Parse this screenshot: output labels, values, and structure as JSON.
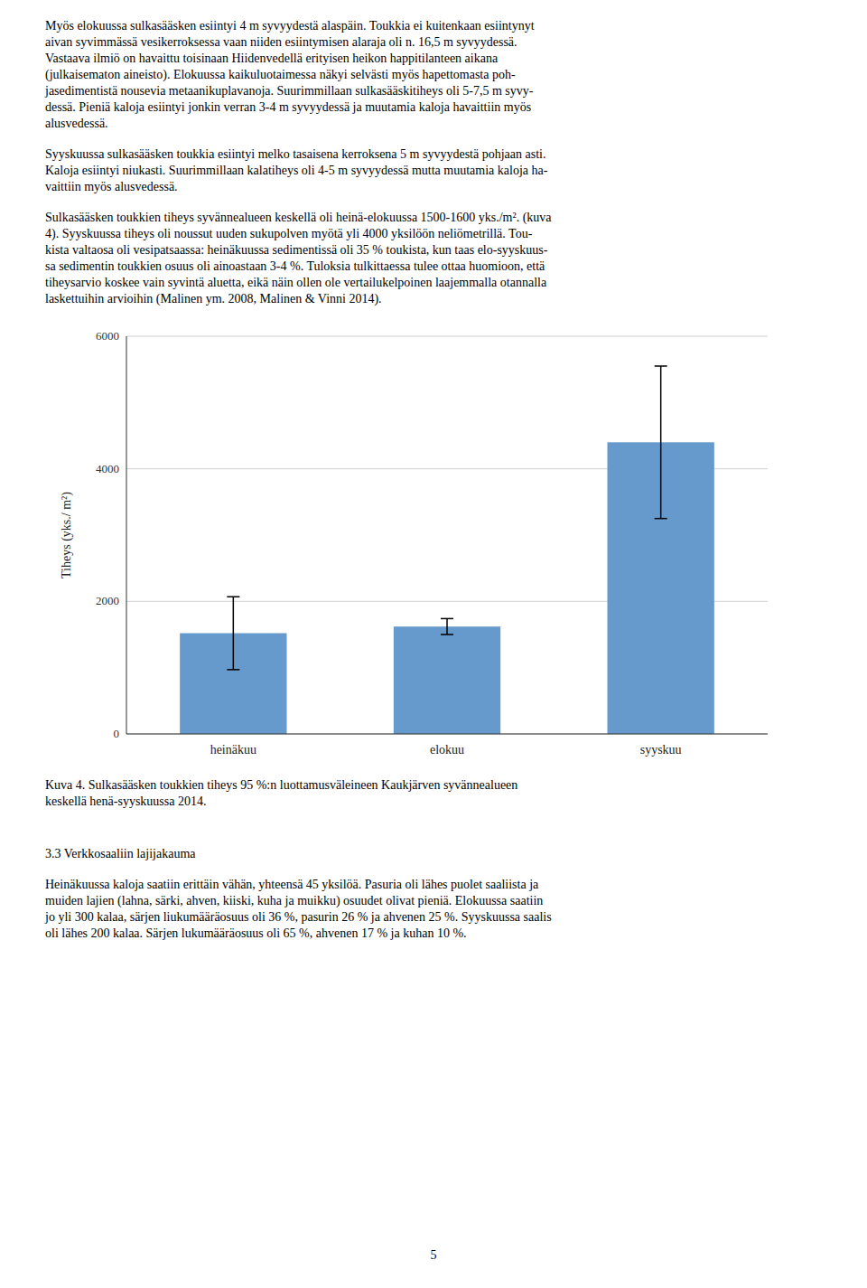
{
  "chart_data": {
    "type": "bar",
    "categories": [
      "heinäkuu",
      "elokuu",
      "syyskuu"
    ],
    "values": [
      1520,
      1620,
      4400
    ],
    "errors": [
      550,
      120,
      1150
    ],
    "color": "#6699cc",
    "ylabel": "Tiheys (yks./ m²)",
    "ylim": [
      0,
      6000
    ],
    "yticks": [
      0,
      2000,
      4000,
      6000
    ],
    "grid": true
  },
  "paragraphs": [
    "Myös elokuussa sulkasääsken esiintyi 4 m syvyydestä alaspäin. Toukkia ei kuitenkaan esiintynyt\naivan syvimmässä vesikerroksessa vaan niiden esiintymisen alaraja oli n. 16,5 m syvyydessä.\nVastaava ilmiö on havaittu toisinaan Hiidenvedellä erityisen heikon happitilanteen aikana\n(julkaisematon aineisto). Elokuussa kaikuluotaimessa näkyi selvästi myös hapettomasta poh-\njasedimentistä nousevia metaanikuplavanoja. Suurimmillaan sulkasääskitiheys oli 5-7,5 m syvy-\ndessä. Pieniä kaloja esiintyi jonkin verran 3-4 m syvyydessä ja muutamia kaloja havaittiin myös\nalusvedessä.",
    "Syyskuussa sulkasääsken toukkia esiintyi melko tasaisena kerroksena 5 m syvyydestä pohjaan asti.\nKaloja esiintyi niukasti. Suurimmillaan kalatiheys oli 4-5 m syvyydessä mutta muutamia kaloja ha-\nvaittiin myös alusvedessä.",
    "Sulkasääsken toukkien tiheys syvännealueen keskellä oli heinä-elokuussa 1500-1600 yks./m². (kuva\n4). Syyskuussa tiheys oli noussut uuden sukupolven myötä yli 4000 yksilöön neliömetrillä. Tou-\nkista valtaosa oli vesipatsaassa: heinäkuussa sedimentissä oli 35 % toukista, kun taas elo-syyskuus-\nsa sedimentin toukkien osuus oli ainoastaan 3-4 %. Tuloksia tulkittaessa tulee ottaa huomioon, että\ntiheysarvio koskee vain syvintä aluetta, eikä näin ollen ole vertailukelpoinen laajemmalla otannalla\nlaskettuihin arvioihin (Malinen ym. 2008, Malinen & Vinni 2014)."
  ],
  "caption": "Kuva 4. Sulkasääsken toukkien tiheys 95 %:n luottamusväleineen Kaukjärven syvännealueen\nkeskellä henä-syyskuussa 2014.",
  "section_header": "3.3 Verkkosaaliin lajijakauma",
  "bottom_text": "Heinäkuussa kaloja saatiin erittäin vähän, yhteensä 45 yksilöä. Pasuria oli lähes puolet saaliista ja\nmuiden lajien (lahna, särki, ahven, kiiski, kuha ja muikku) osuudet olivat pieniä. Elokuussa saatiin\njo yli 300 kalaa, särjen liukumääräosuus oli 36 %, pasurin 26 % ja ahvenen 25 %. Syyskuussa saalis\noli lähes 200 kalaa. Särjen lukumääräosuus oli 65 %, ahvenen 17 % ja kuhan 10 %.",
  "page_number": "5"
}
